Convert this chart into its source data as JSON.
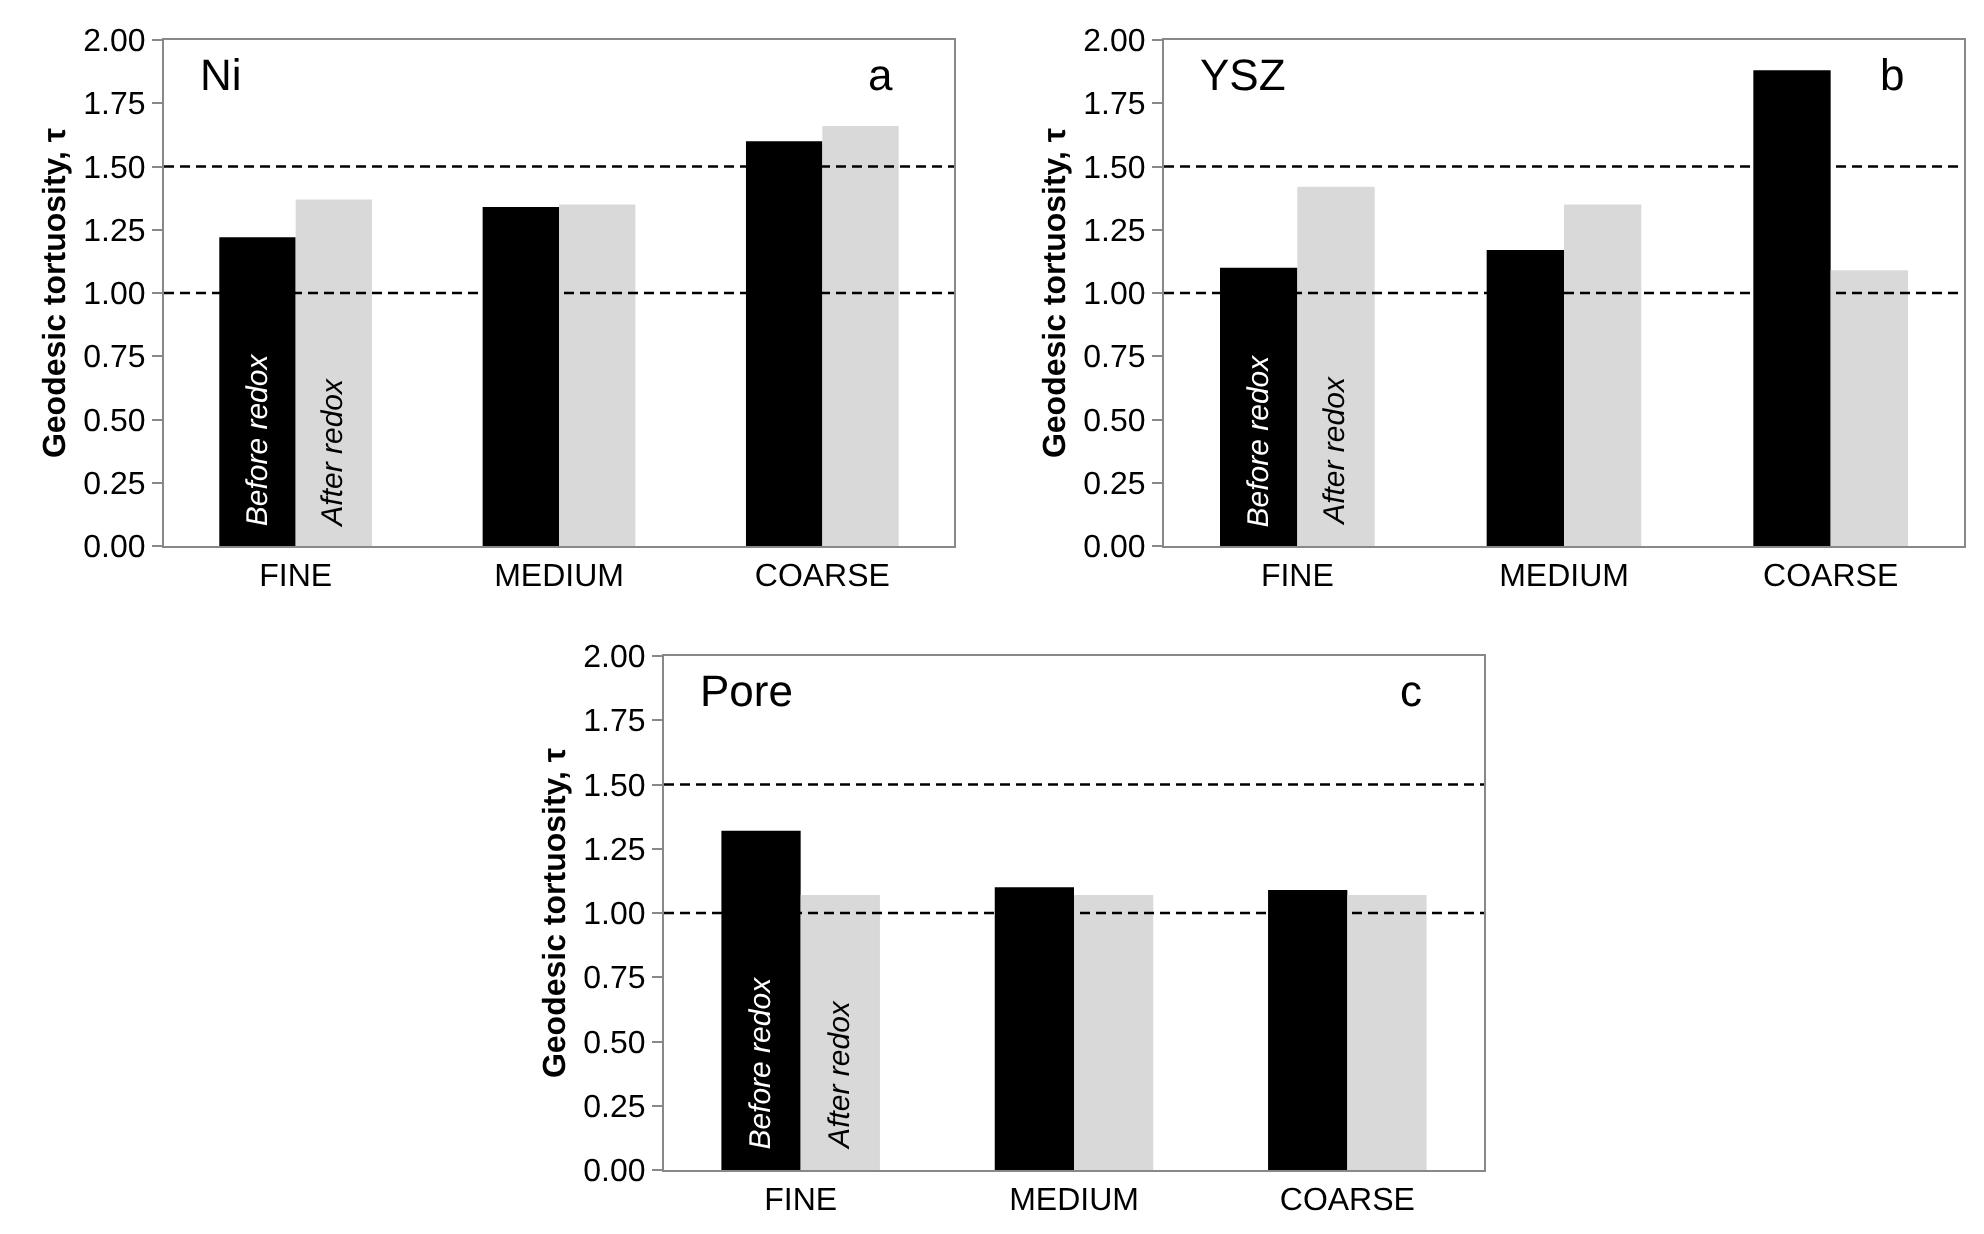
{
  "chart_data": [
    {
      "type": "bar",
      "ylabel": "Geodesic tortuosity, τ",
      "categories": [
        "FINE",
        "MEDIUM",
        "COARSE"
      ],
      "series": [
        {
          "name": "Before redox",
          "color": "#000000",
          "values": [
            1.22,
            1.34,
            1.6
          ]
        },
        {
          "name": "After redox",
          "color": "#d9d9d9",
          "values": [
            1.37,
            1.35,
            1.66
          ]
        }
      ],
      "ylim": [
        0,
        2
      ],
      "yticks": [
        {
          "value": 0,
          "label": "0.00"
        },
        {
          "value": 0.25,
          "label": "0.25"
        },
        {
          "value": 0.5,
          "label": "0.50"
        },
        {
          "value": 0.75,
          "label": "0.75"
        },
        {
          "value": 1,
          "label": "1.00"
        },
        {
          "value": 1.25,
          "label": "1.25"
        },
        {
          "value": 1.5,
          "label": "1.50"
        },
        {
          "value": 1.75,
          "label": "1.75"
        },
        {
          "value": 2,
          "label": "2.00"
        }
      ],
      "ref_lines": [
        {
          "axis": "y",
          "value": 1,
          "line_style": "dashed",
          "color": "#000000"
        },
        {
          "axis": "y",
          "value": 1.5,
          "line_style": "dashed",
          "color": "#000000"
        }
      ],
      "annotations": [
        "Ni",
        "a"
      ]
    },
    {
      "type": "bar",
      "ylabel": "Geodesic tortuosity, τ",
      "categories": [
        "FINE",
        "MEDIUM",
        "COARSE"
      ],
      "series": [
        {
          "name": "Before redox",
          "color": "#000000",
          "values": [
            1.1,
            1.17,
            1.88
          ]
        },
        {
          "name": "After redox",
          "color": "#d9d9d9",
          "values": [
            1.42,
            1.35,
            1.09
          ]
        }
      ],
      "ylim": [
        0,
        2
      ],
      "yticks": [
        {
          "value": 0,
          "label": "0.00"
        },
        {
          "value": 0.25,
          "label": "0.25"
        },
        {
          "value": 0.5,
          "label": "0.50"
        },
        {
          "value": 0.75,
          "label": "0.75"
        },
        {
          "value": 1,
          "label": "1.00"
        },
        {
          "value": 1.25,
          "label": "1.25"
        },
        {
          "value": 1.5,
          "label": "1.50"
        },
        {
          "value": 1.75,
          "label": "1.75"
        },
        {
          "value": 2,
          "label": "2.00"
        }
      ],
      "ref_lines": [
        {
          "axis": "y",
          "value": 1,
          "line_style": "dashed",
          "color": "#000000"
        },
        {
          "axis": "y",
          "value": 1.5,
          "line_style": "dashed",
          "color": "#000000"
        }
      ],
      "annotations": [
        "YSZ",
        "b"
      ]
    },
    {
      "type": "bar",
      "ylabel": "Geodesic tortuosity, τ",
      "categories": [
        "FINE",
        "MEDIUM",
        "COARSE"
      ],
      "series": [
        {
          "name": "Before redox",
          "color": "#000000",
          "values": [
            1.32,
            1.1,
            1.09
          ]
        },
        {
          "name": "After redox",
          "color": "#d9d9d9",
          "values": [
            1.07,
            1.07,
            1.07
          ]
        }
      ],
      "ylim": [
        0,
        2
      ],
      "yticks": [
        {
          "value": 0,
          "label": "0.00"
        },
        {
          "value": 0.25,
          "label": "0.25"
        },
        {
          "value": 0.5,
          "label": "0.50"
        },
        {
          "value": 0.75,
          "label": "0.75"
        },
        {
          "value": 1,
          "label": "1.00"
        },
        {
          "value": 1.25,
          "label": "1.25"
        },
        {
          "value": 1.5,
          "label": "1.50"
        },
        {
          "value": 1.75,
          "label": "1.75"
        },
        {
          "value": 2,
          "label": "2.00"
        }
      ],
      "ref_lines": [
        {
          "axis": "y",
          "value": 1,
          "line_style": "dashed",
          "color": "#000000"
        },
        {
          "axis": "y",
          "value": 1.5,
          "line_style": "dashed",
          "color": "#000000"
        }
      ],
      "annotations": [
        "Pore",
        "c"
      ]
    }
  ]
}
